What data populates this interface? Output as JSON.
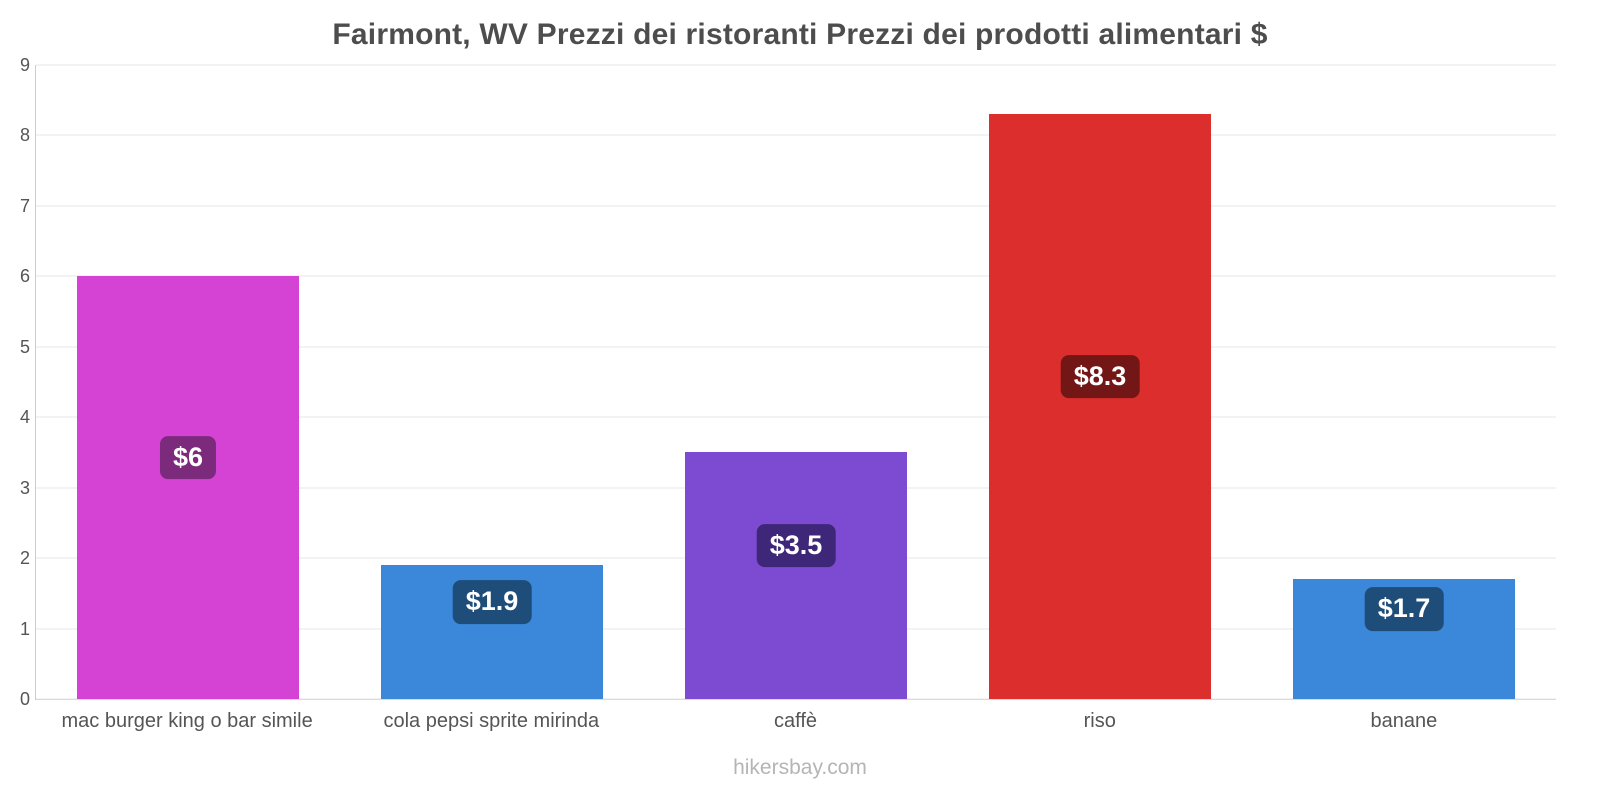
{
  "chart_data": {
    "type": "bar",
    "title": "Fairmont, WV Prezzi dei ristoranti Prezzi dei prodotti alimentari $",
    "categories": [
      "mac burger king o bar simile",
      "cola pepsi sprite mirinda",
      "caffè",
      "riso",
      "banane"
    ],
    "values": [
      6,
      1.9,
      3.5,
      8.3,
      1.7
    ],
    "value_labels": [
      "$6",
      "$1.9",
      "$3.5",
      "$8.3",
      "$1.7"
    ],
    "bar_colors": [
      "#d443d4",
      "#3b87d9",
      "#7d4bd1",
      "#dd2e2e",
      "#3b87d9"
    ],
    "label_bg_colors": [
      "#7c2a7c",
      "#1d4d78",
      "#3e2779",
      "#731616",
      "#1d4d78"
    ],
    "xlabel": "",
    "ylabel": "",
    "ylim": [
      0,
      9
    ],
    "yticks": [
      0,
      1,
      2,
      3,
      4,
      5,
      6,
      7,
      8,
      9
    ],
    "grid": true,
    "legend": "none"
  },
  "footer": {
    "text": "hikersbay.com"
  }
}
